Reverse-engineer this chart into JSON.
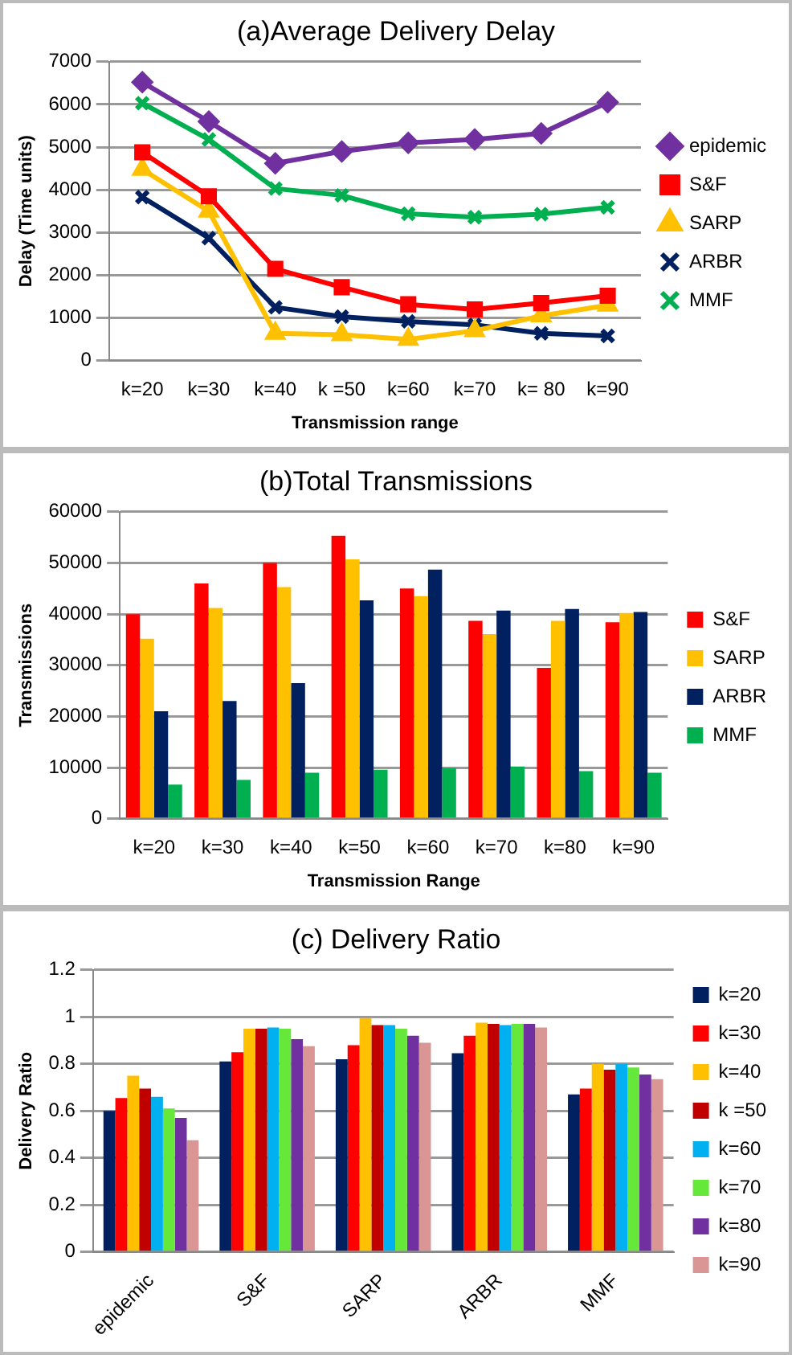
{
  "chart_data": [
    {
      "type": "line",
      "title": "(a)Average Delivery Delay",
      "xlabel": "Transmission range",
      "ylabel": "Delay (Time units)",
      "categories": [
        "k=20",
        "k=30",
        "k=40",
        "k =50",
        "k=60",
        "k=70",
        "k= 80",
        "k=90"
      ],
      "ylim": [
        0,
        7000
      ],
      "yticks": [
        0,
        1000,
        2000,
        3000,
        4000,
        5000,
        6000,
        7000
      ],
      "grid": "y",
      "legend": "right",
      "series": [
        {
          "name": "epidemic",
          "color": "#7030a0",
          "marker": "diamond",
          "values": [
            6520,
            5600,
            4620,
            4900,
            5100,
            5180,
            5320,
            6050
          ]
        },
        {
          "name": "S&F",
          "color": "#ff0000",
          "marker": "square",
          "values": [
            4880,
            3850,
            2150,
            1720,
            1320,
            1200,
            1350,
            1520
          ]
        },
        {
          "name": "SARP",
          "color": "#ffc000",
          "marker": "triangle",
          "values": [
            4480,
            3500,
            640,
            610,
            500,
            700,
            1050,
            1300
          ]
        },
        {
          "name": "ARBR",
          "color": "#002060",
          "marker": "cross",
          "values": [
            3830,
            2870,
            1250,
            1030,
            920,
            840,
            640,
            580
          ]
        },
        {
          "name": "MMF",
          "color": "#00b050",
          "marker": "cross",
          "values": [
            6030,
            5180,
            4030,
            3870,
            3440,
            3360,
            3430,
            3590
          ]
        }
      ]
    },
    {
      "type": "bar",
      "title": "(b)Total Transmissions",
      "xlabel": "Transmission Range",
      "ylabel": "Transmissions",
      "categories": [
        "k=20",
        "k=30",
        "k=40",
        "k=50",
        "k=60",
        "k=70",
        "k=80",
        "k=90"
      ],
      "ylim": [
        0,
        60000
      ],
      "yticks": [
        0,
        10000,
        20000,
        30000,
        40000,
        50000,
        60000
      ],
      "grid": "y",
      "legend": "right",
      "series": [
        {
          "name": "S&F",
          "color": "#ff0000",
          "values": [
            40000,
            46000,
            50000,
            55300,
            45000,
            38700,
            29500,
            38400
          ]
        },
        {
          "name": "SARP",
          "color": "#ffc000",
          "values": [
            35200,
            41200,
            45300,
            50700,
            43500,
            36100,
            38700,
            40200
          ]
        },
        {
          "name": "ARBR",
          "color": "#002060",
          "values": [
            21000,
            23000,
            26500,
            42700,
            48700,
            40700,
            41000,
            40400
          ]
        },
        {
          "name": "MMF",
          "color": "#00b050",
          "values": [
            6700,
            7600,
            9000,
            9600,
            9900,
            10200,
            9300,
            9000
          ]
        }
      ]
    },
    {
      "type": "bar",
      "title": "(c) Delivery Ratio",
      "ylabel": "Delivery Ratio",
      "categories": [
        "epidemic",
        "S&F",
        "SARP",
        "ARBR",
        "MMF"
      ],
      "ylim": [
        0,
        1.2
      ],
      "yticks": [
        0,
        0.2,
        0.4,
        0.6,
        0.8,
        1,
        1.2
      ],
      "grid": "y",
      "legend": "right",
      "series": [
        {
          "name": "k=20",
          "color": "#002060",
          "values": [
            0.6,
            0.81,
            0.82,
            0.845,
            0.67
          ]
        },
        {
          "name": "k=30",
          "color": "#ff0000",
          "values": [
            0.655,
            0.85,
            0.88,
            0.92,
            0.695
          ]
        },
        {
          "name": "k=40",
          "color": "#ffc000",
          "values": [
            0.75,
            0.95,
            0.995,
            0.975,
            0.8
          ]
        },
        {
          "name": "k =50",
          "color": "#c00000",
          "values": [
            0.695,
            0.95,
            0.965,
            0.97,
            0.775
          ]
        },
        {
          "name": "k=60",
          "color": "#00b0f0",
          "values": [
            0.66,
            0.955,
            0.965,
            0.965,
            0.8
          ]
        },
        {
          "name": "k=70",
          "color": "#66e83a",
          "values": [
            0.61,
            0.95,
            0.95,
            0.97,
            0.785
          ]
        },
        {
          "name": "k=80",
          "color": "#7030a0",
          "values": [
            0.57,
            0.905,
            0.92,
            0.97,
            0.755
          ]
        },
        {
          "name": "k=90",
          "color": "#d99694",
          "values": [
            0.475,
            0.875,
            0.89,
            0.955,
            0.735
          ]
        }
      ]
    }
  ]
}
